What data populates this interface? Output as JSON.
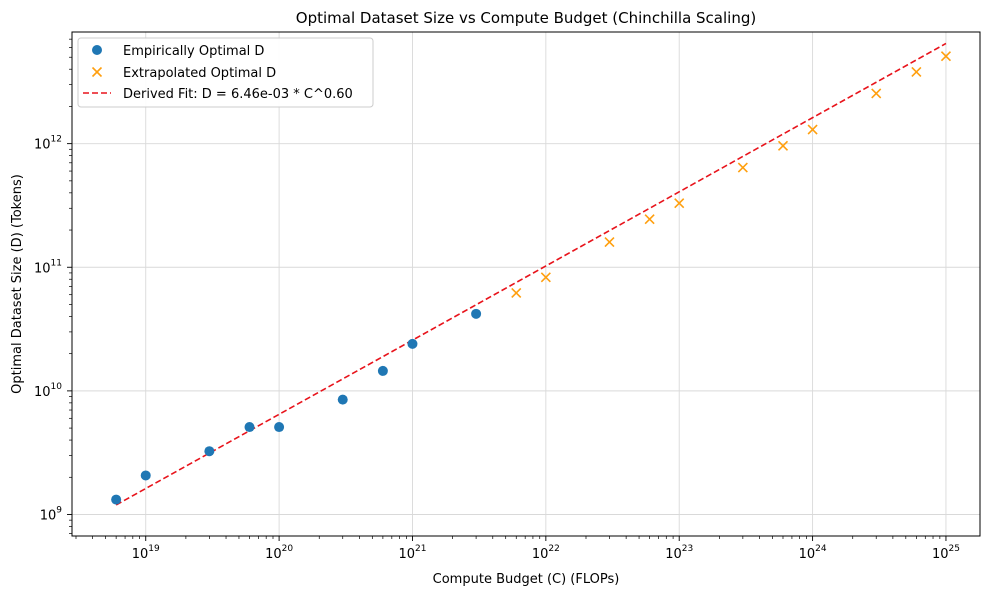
{
  "chart_data": {
    "type": "scatter",
    "title": "Optimal Dataset Size vs Compute Budget (Chinchilla Scaling)",
    "xlabel": "Compute Budget (C) (FLOPs)",
    "ylabel": "Optimal Dataset Size (D) (Tokens)",
    "x_scale": "log",
    "y_scale": "log",
    "xlim": [
      2.8e+18,
      1.8e+25
    ],
    "ylim": [
      670000000.0,
      8000000000000.0
    ],
    "grid": true,
    "legend_position": "top-left",
    "x_ticks": [
      {
        "value": 1e+19,
        "base": "10",
        "exp": "19"
      },
      {
        "value": 1e+20,
        "base": "10",
        "exp": "20"
      },
      {
        "value": 1e+21,
        "base": "10",
        "exp": "21"
      },
      {
        "value": 1e+22,
        "base": "10",
        "exp": "22"
      },
      {
        "value": 1e+23,
        "base": "10",
        "exp": "23"
      },
      {
        "value": 1e+24,
        "base": "10",
        "exp": "24"
      },
      {
        "value": 1e+25,
        "base": "10",
        "exp": "25"
      }
    ],
    "y_ticks": [
      {
        "value": 1000000000.0,
        "base": "10",
        "exp": "9"
      },
      {
        "value": 10000000000.0,
        "base": "10",
        "exp": "10"
      },
      {
        "value": 100000000000.0,
        "base": "10",
        "exp": "11"
      },
      {
        "value": 1000000000000.0,
        "base": "10",
        "exp": "12"
      }
    ],
    "series": [
      {
        "name": "Empirically Optimal D",
        "marker": "circle",
        "color": "#1f77b4",
        "x": [
          6e+18,
          1e+19,
          3e+19,
          6e+19,
          1e+20,
          3e+20,
          6e+20,
          1e+21,
          3e+21
        ],
        "y": [
          1320000000.0,
          2070000000.0,
          3250000000.0,
          5100000000.0,
          5100000000.0,
          8500000000.0,
          14500000000.0,
          24000000000.0,
          42000000000.0
        ]
      },
      {
        "name": "Extrapolated Optimal D",
        "marker": "x",
        "color": "#ff9f0e",
        "x": [
          6e+21,
          1e+22,
          3e+22,
          6e+22,
          1e+23,
          3e+23,
          6e+23,
          1e+24,
          3e+24,
          6e+24,
          1e+25
        ],
        "y": [
          62000000000.0,
          83000000000.0,
          160000000000.0,
          245000000000.0,
          330000000000.0,
          640000000000.0,
          960000000000.0,
          1300000000000.0,
          2550000000000.0,
          3800000000000.0,
          5100000000000.0
        ]
      },
      {
        "name": "Derived Fit: D = 6.46e-03 * C^0.60",
        "marker": "dashed-line",
        "color": "#e8131b",
        "coefficient": 0.00646,
        "exponent": 0.6,
        "x_range": [
          6e+18,
          1e+25
        ]
      }
    ]
  }
}
